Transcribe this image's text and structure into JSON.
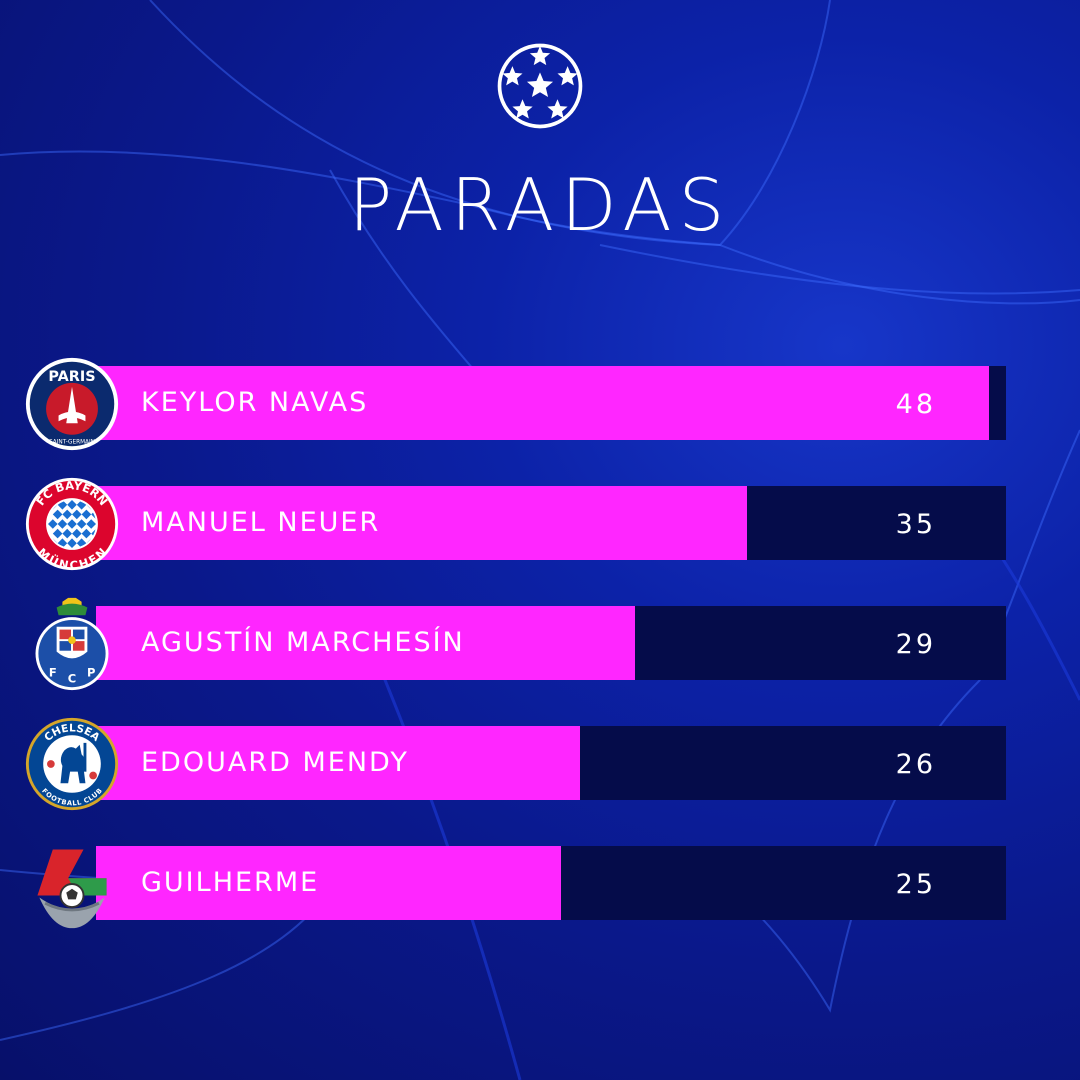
{
  "title": "PARADAS",
  "icons": {
    "competition_logo": "starball-icon"
  },
  "colors": {
    "background": "#0c22a8",
    "bar": "#ff26ff",
    "track": "#050c4a",
    "text": "#ffffff"
  },
  "chart_data": {
    "type": "bar",
    "orientation": "horizontal",
    "title": "PARADAS",
    "xlabel": "",
    "ylabel": "",
    "xlim": [
      0,
      50
    ],
    "categories": [
      "KEYLOR NAVAS",
      "MANUEL NEUER",
      "AGUSTÍN MARCHESÍN",
      "EDOUARD MENDY",
      "GUILHERME"
    ],
    "values": [
      48,
      35,
      29,
      26,
      25
    ],
    "value_labels": [
      "48",
      "35",
      "29",
      "26",
      "25"
    ],
    "club_crests": [
      {
        "icon": "psg-crest-icon",
        "text": [
          "PARIS",
          "SAINT-GERMAIN"
        ]
      },
      {
        "icon": "bayern-crest-icon",
        "text": [
          "FC BAYERN",
          "MÜNCHEN"
        ]
      },
      {
        "icon": "porto-crest-icon",
        "text": [
          "F",
          "C",
          "P"
        ]
      },
      {
        "icon": "chelsea-crest-icon",
        "text": [
          "CHELSEA",
          "FOOTBALL CLUB"
        ]
      },
      {
        "icon": "lokomotiv-crest-icon",
        "text": []
      }
    ],
    "grid": false,
    "legend": "none"
  }
}
